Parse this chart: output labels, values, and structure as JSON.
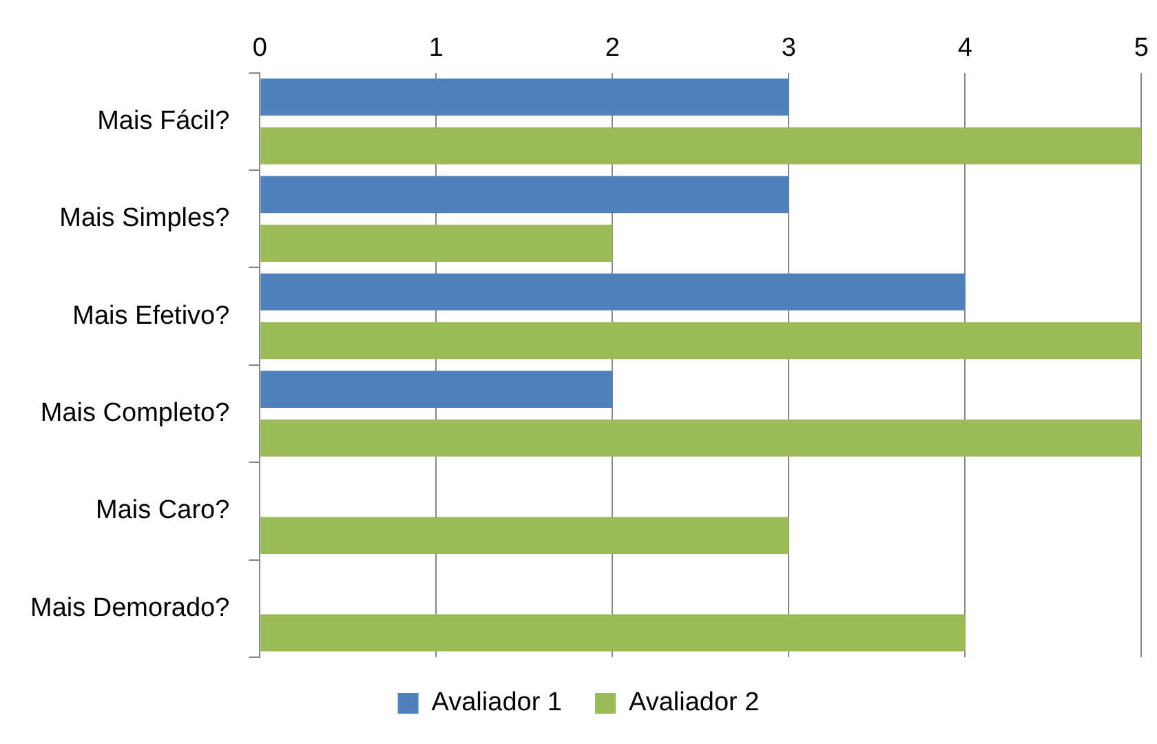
{
  "chart_data": {
    "type": "bar",
    "orientation": "horizontal",
    "categories": [
      "Mais Fácil?",
      "Mais Simples?",
      "Mais Efetivo?",
      "Mais Completo?",
      "Mais Caro?",
      "Mais Demorado?"
    ],
    "series": [
      {
        "name": "Avaliador 1",
        "color": "#4f81bd",
        "values": [
          3,
          3,
          4,
          2,
          0,
          0
        ]
      },
      {
        "name": "Avaliador 2",
        "color": "#9bbb59",
        "values": [
          5,
          2,
          5,
          5,
          3,
          4
        ]
      }
    ],
    "xlim": [
      0,
      5
    ],
    "xticks": [
      0,
      1,
      2,
      3,
      4,
      5
    ],
    "grid": "x",
    "legend": "bottom"
  }
}
